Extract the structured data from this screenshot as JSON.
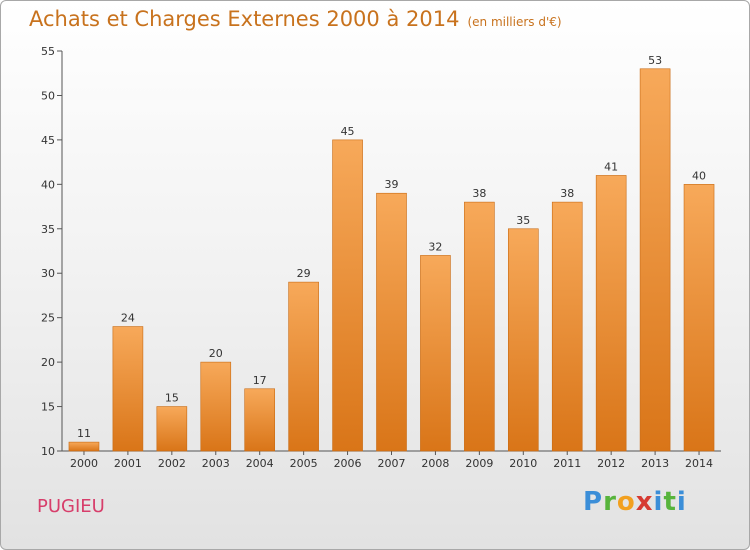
{
  "header": {
    "title": "Achats et Charges Externes 2000 à 2014",
    "subtitle": "(en milliers d'€)"
  },
  "footer": {
    "commune": "PUGIEU",
    "logo_text": "Proxiti"
  },
  "colors": {
    "bar_top": "#f7a95a",
    "bar_bottom": "#d97518",
    "title": "#c8721d",
    "commune": "#d73e6b"
  },
  "chart_data": {
    "type": "bar",
    "title": "Achats et Charges Externes 2000 à 2014",
    "subtitle": "(en milliers d'€)",
    "categories": [
      "2000",
      "2001",
      "2002",
      "2003",
      "2004",
      "2005",
      "2006",
      "2007",
      "2008",
      "2009",
      "2010",
      "2011",
      "2012",
      "2013",
      "2014"
    ],
    "values": [
      11,
      24,
      15,
      20,
      17,
      29,
      45,
      39,
      32,
      38,
      35,
      38,
      41,
      53,
      40
    ],
    "ylim": [
      10,
      55
    ],
    "yticks": [
      10,
      15,
      20,
      25,
      30,
      35,
      40,
      45,
      50,
      55
    ],
    "grid": false,
    "data_labels": true
  }
}
